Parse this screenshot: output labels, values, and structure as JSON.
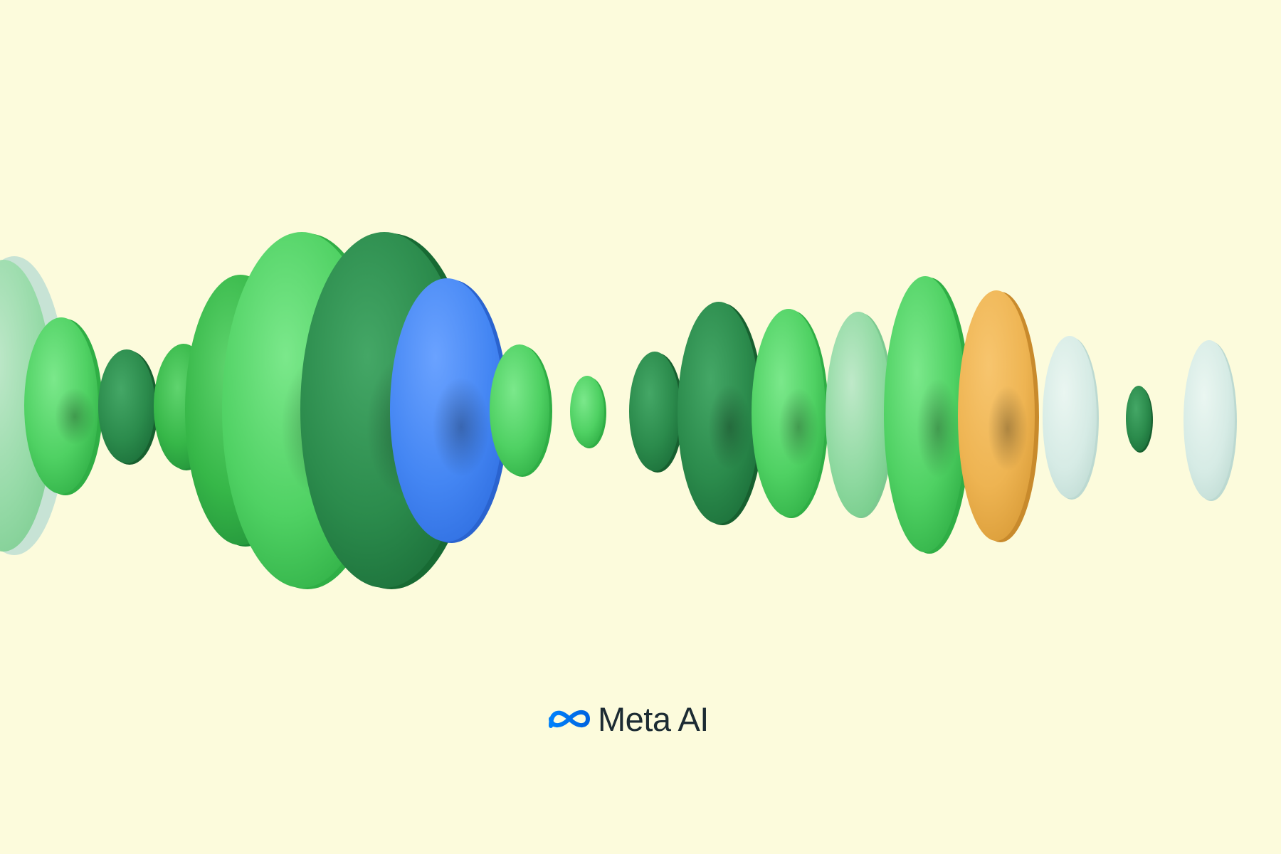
{
  "brand": {
    "name": "Meta AI",
    "logo_icon": "meta-infinity-icon",
    "logo_color_start": "#0081fb",
    "logo_color_end": "#0064e0",
    "text_color": "#1c2b33"
  },
  "colors": {
    "background": "#fcfbdc",
    "green_light": "#5fd873",
    "green_mid": "#3cc04f",
    "green_dark": "#2a8f4a",
    "blue": "#4f8ff7",
    "orange": "#f0b95a",
    "pale": "#d9ece8"
  }
}
